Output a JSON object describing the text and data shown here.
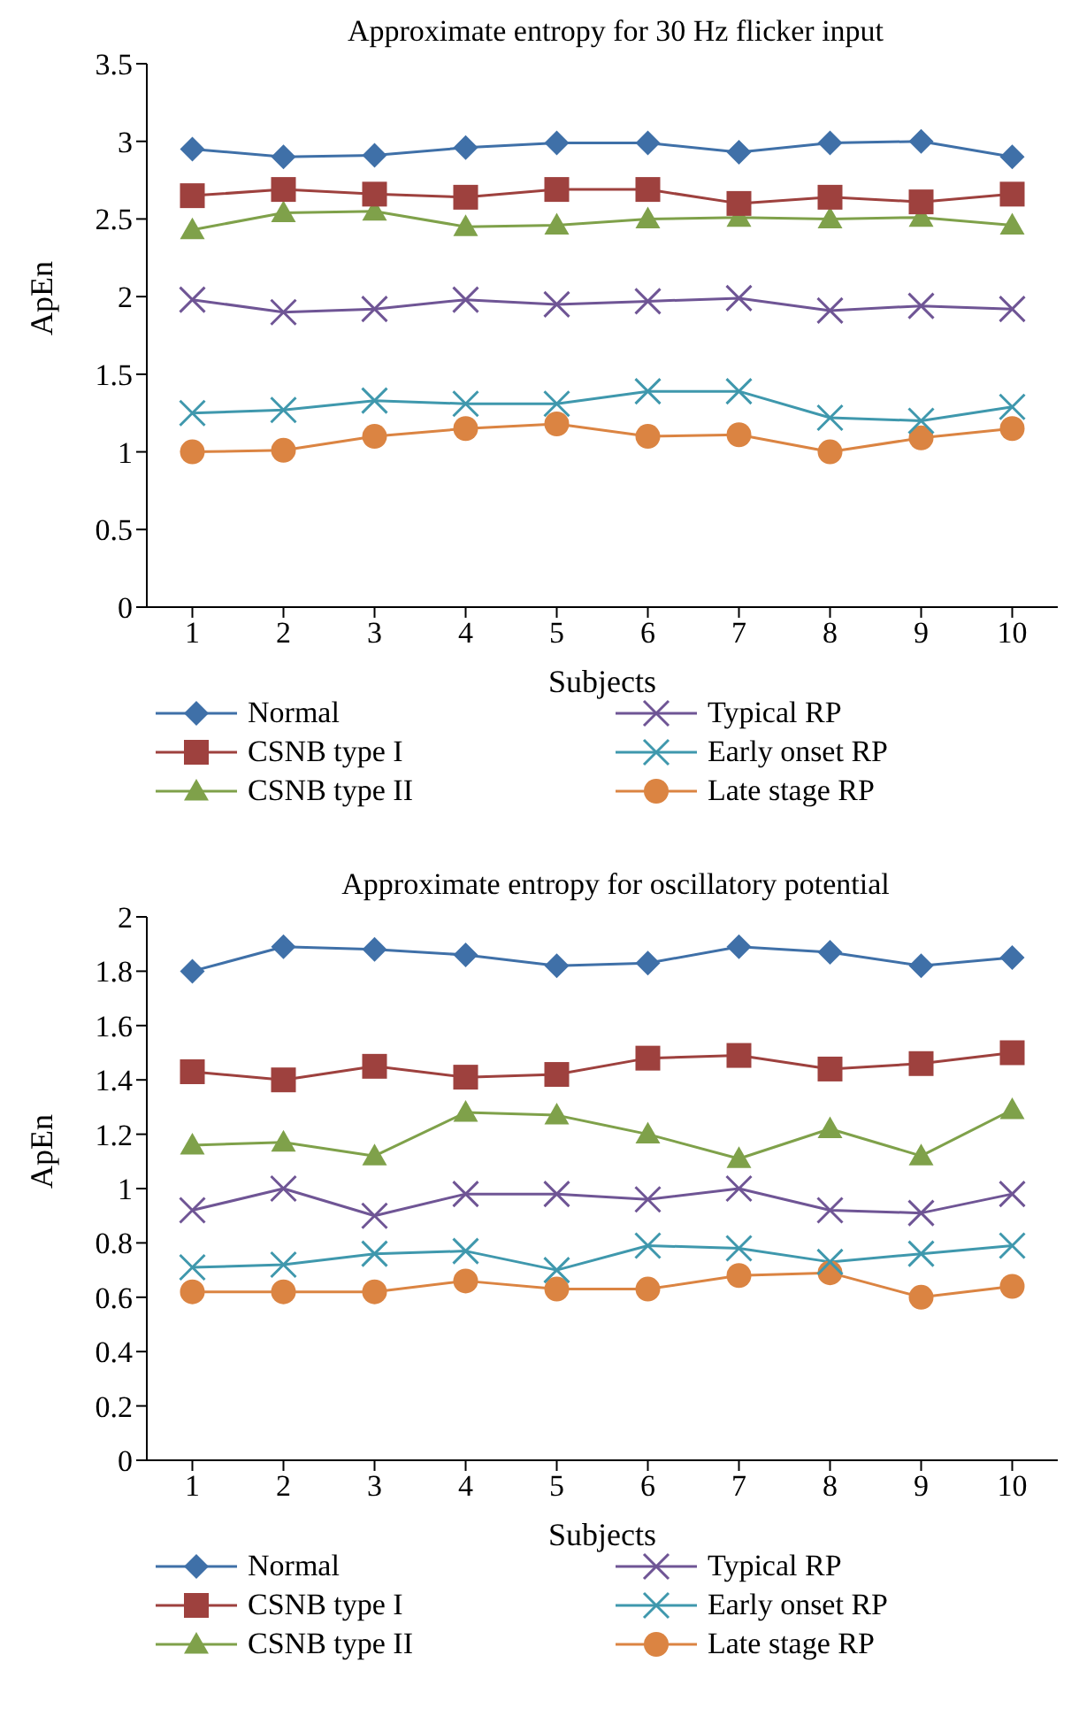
{
  "chart_data": [
    {
      "type": "line",
      "title": "Approximate entropy for 30 Hz flicker input",
      "xlabel": "Subjects",
      "ylabel": "ApEn",
      "categories": [
        "1",
        "2",
        "3",
        "4",
        "5",
        "6",
        "7",
        "8",
        "9",
        "10"
      ],
      "ylim": [
        0,
        3.5
      ],
      "yticks": [
        0,
        0.5,
        1,
        1.5,
        2,
        2.5,
        3,
        3.5
      ],
      "grid": false,
      "legend": "bottom",
      "series": [
        {
          "name": "Normal",
          "color": "#3f70a8",
          "marker": "diamond",
          "values": [
            2.95,
            2.9,
            2.91,
            2.96,
            2.99,
            2.99,
            2.93,
            2.99,
            3.0,
            2.9
          ]
        },
        {
          "name": "CSNB type I",
          "color": "#9e413e",
          "marker": "square",
          "values": [
            2.65,
            2.69,
            2.66,
            2.64,
            2.69,
            2.69,
            2.6,
            2.64,
            2.61,
            2.66
          ]
        },
        {
          "name": "CSNB type II",
          "color": "#7fa14a",
          "marker": "triangle",
          "values": [
            2.43,
            2.54,
            2.55,
            2.45,
            2.46,
            2.5,
            2.51,
            2.5,
            2.51,
            2.46
          ]
        },
        {
          "name": "Typical RP",
          "color": "#6f5595",
          "marker": "cross",
          "values": [
            1.98,
            1.9,
            1.92,
            1.98,
            1.95,
            1.97,
            1.99,
            1.91,
            1.94,
            1.92
          ]
        },
        {
          "name": "Early onset RP",
          "color": "#3f98ad",
          "marker": "cross",
          "values": [
            1.25,
            1.27,
            1.33,
            1.31,
            1.31,
            1.39,
            1.39,
            1.22,
            1.2,
            1.29
          ]
        },
        {
          "name": "Late stage RP",
          "color": "#db8442",
          "marker": "circle",
          "values": [
            1.0,
            1.01,
            1.1,
            1.15,
            1.18,
            1.1,
            1.11,
            1.0,
            1.09,
            1.15
          ]
        }
      ]
    },
    {
      "type": "line",
      "title": "Approximate entropy for oscillatory potential",
      "xlabel": "Subjects",
      "ylabel": "ApEn",
      "categories": [
        "1",
        "2",
        "3",
        "4",
        "5",
        "6",
        "7",
        "8",
        "9",
        "10"
      ],
      "ylim": [
        0,
        2
      ],
      "yticks": [
        0,
        0.2,
        0.4,
        0.6,
        0.8,
        1,
        1.2,
        1.4,
        1.6,
        1.8,
        2
      ],
      "grid": false,
      "legend": "bottom",
      "series": [
        {
          "name": "Normal",
          "color": "#3f70a8",
          "marker": "diamond",
          "values": [
            1.8,
            1.89,
            1.88,
            1.86,
            1.82,
            1.83,
            1.89,
            1.87,
            1.82,
            1.85
          ]
        },
        {
          "name": "CSNB type I",
          "color": "#9e413e",
          "marker": "square",
          "values": [
            1.43,
            1.4,
            1.45,
            1.41,
            1.42,
            1.48,
            1.49,
            1.44,
            1.46,
            1.5
          ]
        },
        {
          "name": "CSNB type II",
          "color": "#7fa14a",
          "marker": "triangle",
          "values": [
            1.16,
            1.17,
            1.12,
            1.28,
            1.27,
            1.2,
            1.11,
            1.22,
            1.12,
            1.29
          ]
        },
        {
          "name": "Typical RP",
          "color": "#6f5595",
          "marker": "cross",
          "values": [
            0.92,
            1.0,
            0.9,
            0.98,
            0.98,
            0.96,
            1.0,
            0.92,
            0.91,
            0.98
          ]
        },
        {
          "name": "Early onset RP",
          "color": "#3f98ad",
          "marker": "cross",
          "values": [
            0.71,
            0.72,
            0.76,
            0.77,
            0.7,
            0.79,
            0.78,
            0.73,
            0.76,
            0.79
          ]
        },
        {
          "name": "Late stage RP",
          "color": "#db8442",
          "marker": "circle",
          "values": [
            0.62,
            0.62,
            0.62,
            0.66,
            0.63,
            0.63,
            0.68,
            0.69,
            0.6,
            0.64
          ]
        }
      ]
    }
  ]
}
